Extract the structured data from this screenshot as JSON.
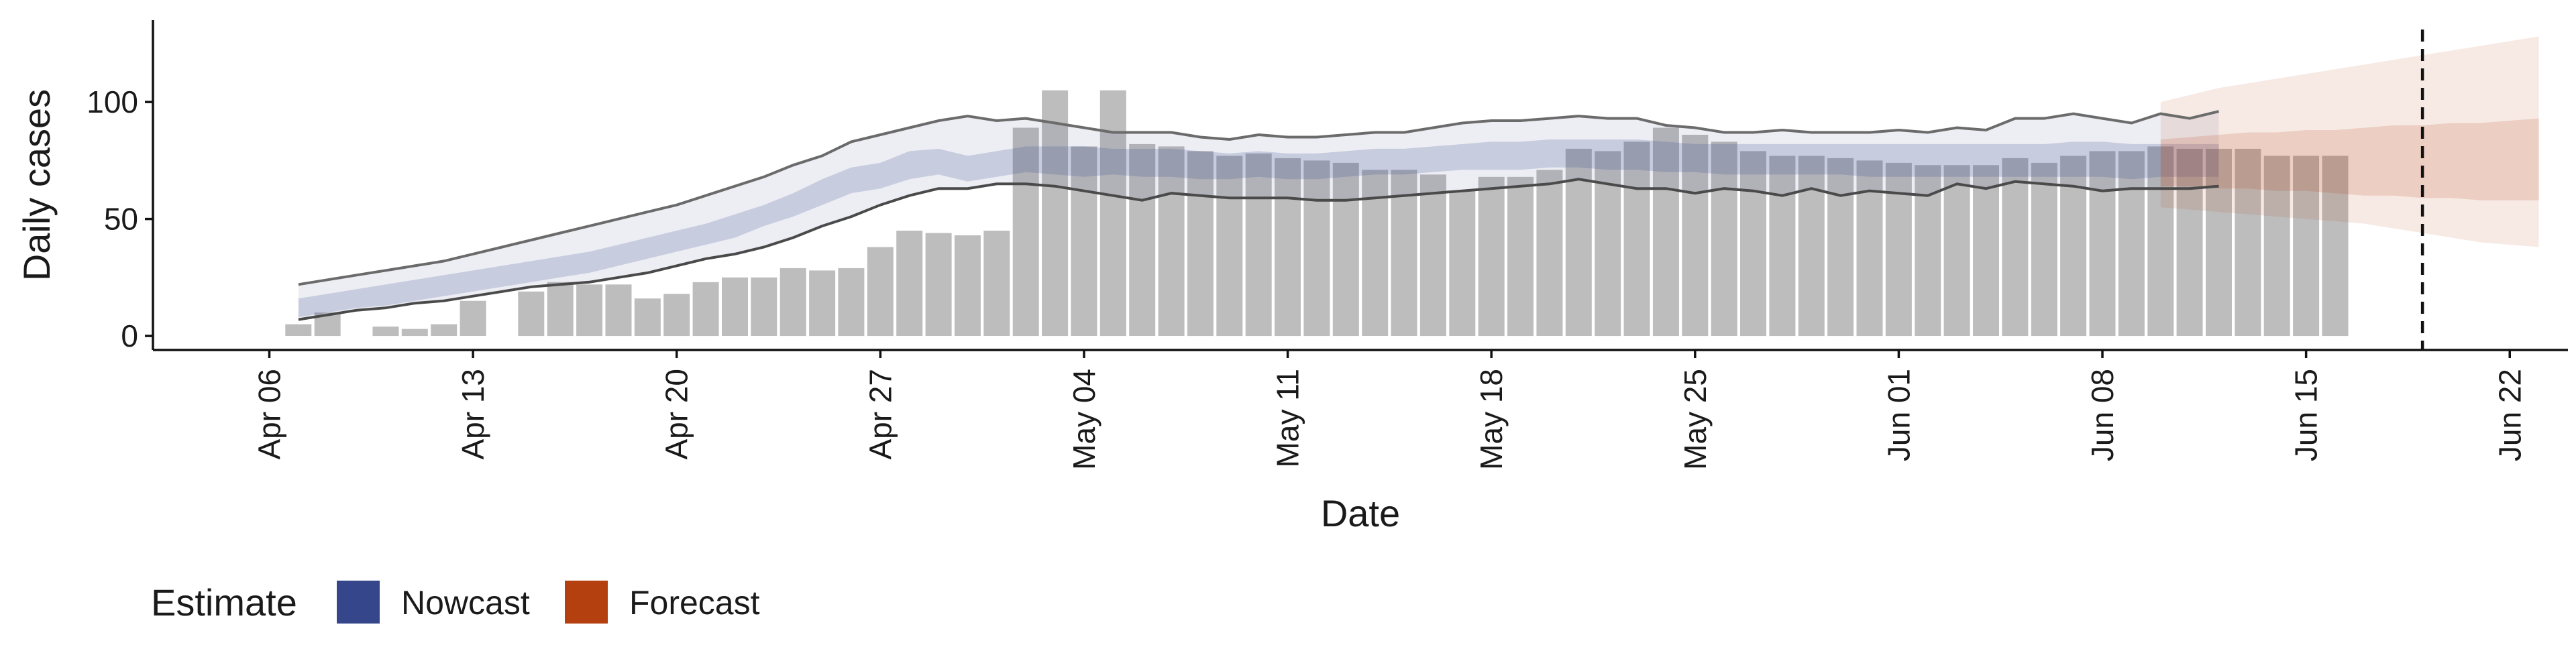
{
  "chart_data": {
    "type": "bar",
    "xlabel": "Date",
    "ylabel": "Daily cases",
    "ylim": [
      -6,
      135
    ],
    "xlim": [
      "2020-04-02",
      "2020-06-24"
    ],
    "y_ticks": [
      0,
      50,
      100
    ],
    "x_ticks": [
      {
        "date": "2020-04-06",
        "label": "Apr 06"
      },
      {
        "date": "2020-04-13",
        "label": "Apr 13"
      },
      {
        "date": "2020-04-20",
        "label": "Apr 20"
      },
      {
        "date": "2020-04-27",
        "label": "Apr 27"
      },
      {
        "date": "2020-05-04",
        "label": "May 04"
      },
      {
        "date": "2020-05-11",
        "label": "May 11"
      },
      {
        "date": "2020-05-18",
        "label": "May 18"
      },
      {
        "date": "2020-05-25",
        "label": "May 25"
      },
      {
        "date": "2020-06-01",
        "label": "Jun 01"
      },
      {
        "date": "2020-06-08",
        "label": "Jun 08"
      },
      {
        "date": "2020-06-15",
        "label": "Jun 15"
      },
      {
        "date": "2020-06-22",
        "label": "Jun 22"
      }
    ],
    "grid": false,
    "bar_color": "#bdbdbd",
    "cases": {
      "start_date": "2020-04-07",
      "values": [
        5,
        10,
        null,
        4,
        3,
        5,
        15,
        null,
        19,
        23,
        22,
        22,
        16,
        18,
        23,
        25,
        25,
        29,
        28,
        29,
        38,
        45,
        44,
        43,
        45,
        89,
        105,
        81,
        105,
        82,
        81,
        79,
        77,
        78,
        76,
        75,
        74,
        71,
        71,
        69,
        62,
        68,
        68,
        71,
        80,
        79,
        83,
        89,
        86,
        83,
        79,
        77,
        77,
        76,
        75,
        74,
        73,
        73,
        73,
        76,
        74,
        77,
        79,
        79,
        81,
        80,
        80,
        80,
        77,
        77,
        77
      ]
    },
    "series": [
      {
        "name": "Nowcast",
        "color": "#36468a",
        "start_date": "2020-04-07",
        "outer_upper": [
          22,
          24,
          26,
          28,
          30,
          32,
          35,
          38,
          41,
          44,
          47,
          50,
          53,
          56,
          60,
          64,
          68,
          73,
          77,
          83,
          86,
          89,
          92,
          94,
          92,
          93,
          91,
          89,
          87,
          87,
          87,
          85,
          84,
          86,
          85,
          85,
          86,
          87,
          87,
          89,
          91,
          92,
          92,
          93,
          94,
          93,
          93,
          90,
          89,
          87,
          87,
          88,
          87,
          87,
          87,
          88,
          87,
          89,
          88,
          93,
          93,
          95,
          93,
          91,
          95,
          93,
          96
        ],
        "inner_upper": [
          16,
          18,
          20,
          22,
          24,
          26,
          28,
          30,
          32,
          34,
          36,
          39,
          42,
          45,
          48,
          52,
          56,
          61,
          67,
          72,
          74,
          79,
          80,
          77,
          79,
          81,
          81,
          81,
          80,
          80,
          80,
          79,
          78,
          79,
          78,
          78,
          79,
          80,
          80,
          81,
          82,
          83,
          83,
          84,
          84,
          84,
          84,
          83,
          82,
          82,
          82,
          82,
          82,
          82,
          82,
          82,
          82,
          82,
          82,
          82,
          82,
          83,
          83,
          82,
          82,
          82,
          82
        ],
        "inner_lower": [
          8,
          10,
          12,
          13,
          15,
          17,
          19,
          21,
          23,
          25,
          27,
          30,
          33,
          36,
          39,
          42,
          47,
          51,
          56,
          61,
          63,
          67,
          69,
          66,
          68,
          70,
          69,
          68,
          69,
          68,
          68,
          67,
          67,
          68,
          67,
          67,
          68,
          69,
          69,
          70,
          71,
          71,
          71,
          72,
          72,
          71,
          71,
          70,
          70,
          69,
          69,
          69,
          69,
          69,
          68,
          68,
          68,
          68,
          68,
          68,
          68,
          68,
          68,
          67,
          68,
          68,
          68
        ],
        "outer_lower": [
          7,
          9,
          11,
          12,
          14,
          15,
          17,
          19,
          21,
          22,
          23,
          25,
          27,
          30,
          33,
          35,
          38,
          42,
          47,
          51,
          56,
          60,
          63,
          63,
          65,
          65,
          64,
          62,
          60,
          58,
          61,
          60,
          59,
          59,
          59,
          58,
          58,
          59,
          60,
          61,
          62,
          63,
          64,
          65,
          67,
          65,
          63,
          63,
          61,
          63,
          62,
          60,
          63,
          60,
          62,
          61,
          60,
          65,
          63,
          66,
          65,
          64,
          62,
          63,
          63,
          63,
          64
        ]
      },
      {
        "name": "Forecast",
        "color": "#b5400f",
        "start_date": "2020-06-10",
        "outer_upper": [
          100,
          103,
          106,
          108,
          110,
          112,
          114,
          116,
          118,
          120,
          122,
          124,
          126,
          128
        ],
        "inner_upper": [
          84,
          85,
          86,
          87,
          87,
          88,
          88,
          89,
          90,
          90,
          91,
          91,
          92,
          93
        ],
        "inner_lower": [
          64,
          64,
          63,
          63,
          62,
          62,
          61,
          60,
          60,
          59,
          59,
          58,
          58,
          58
        ],
        "outer_lower": [
          55,
          54,
          53,
          52,
          51,
          50,
          49,
          48,
          46,
          44,
          42,
          40,
          39,
          38
        ]
      }
    ],
    "vline_date": "2020-06-19",
    "legend": {
      "title": "Estimate",
      "position": "bottom-left",
      "items": [
        {
          "label": "Nowcast",
          "color": "#36468a"
        },
        {
          "label": "Forecast",
          "color": "#b5400f"
        }
      ]
    }
  }
}
